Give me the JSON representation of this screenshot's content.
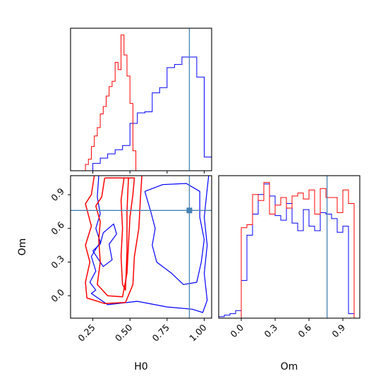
{
  "chart_data": {
    "type": "corner",
    "colors": {
      "series_a": "#0000ff",
      "series_b": "#ff0000",
      "truth": "#4682b4"
    },
    "parameters": [
      "H0",
      "Om"
    ],
    "truth": {
      "H0": 0.9,
      "Om": 0.76
    },
    "grid": false,
    "panels": [
      {
        "id": "hist-H0",
        "type": "histogram",
        "xlim": [
          0.1,
          1.05
        ],
        "ylabel": "",
        "y_ticks_shown": false,
        "series": [
          {
            "color": "#0000ff",
            "bin_edges": [
              0.1,
              0.15,
              0.2,
              0.25,
              0.3,
              0.35,
              0.4,
              0.45,
              0.5,
              0.55,
              0.6,
              0.65,
              0.7,
              0.75,
              0.8,
              0.85,
              0.9,
              0.95,
              1.0,
              1.05
            ],
            "counts": [
              0,
              0,
              0,
              0.7,
              1.2,
              1.6,
              2.0,
              2.4,
              4.5,
              5.5,
              5.6,
              7.4,
              7.9,
              9.8,
              10.1,
              10.8,
              10.8,
              8.9,
              1.3
            ]
          },
          {
            "color": "#ff0000",
            "bin_edges": [
              0.2,
              0.22,
              0.24,
              0.26,
              0.28,
              0.3,
              0.32,
              0.34,
              0.36,
              0.38,
              0.4,
              0.42,
              0.44,
              0.46,
              0.48,
              0.5,
              0.52,
              0.54,
              0.56
            ],
            "counts": [
              0.6,
              1.1,
              2.3,
              3.3,
              4.1,
              5.4,
              6.1,
              7.1,
              8.0,
              8.5,
              10.3,
              9.6,
              12.9,
              11.0,
              9.0,
              6.4,
              1.9,
              0
            ]
          }
        ]
      },
      {
        "id": "contour-H0-Om",
        "type": "contour",
        "xlabel": "H0",
        "ylabel": "Om",
        "xlim": [
          0.1,
          1.05
        ],
        "ylim": [
          -0.2,
          1.07
        ],
        "xticks": [
          "0.25",
          "0.50",
          "0.75",
          "1.00"
        ],
        "yticks": [
          "0.0",
          "0.3",
          "0.6",
          "0.9"
        ],
        "xtick_values": [
          0.25,
          0.5,
          0.75,
          1.0
        ],
        "ytick_values": [
          0.0,
          0.3,
          0.6,
          0.9
        ],
        "series": [
          {
            "color": "#0000ff",
            "levels": [
              [
                [
                  0.29,
                  1.07
                ],
                [
                  0.28,
                  0.88
                ],
                [
                  0.3,
                  0.73
                ],
                [
                  0.27,
                  0.6
                ],
                [
                  0.3,
                  0.48
                ],
                [
                  0.24,
                  0.35
                ],
                [
                  0.27,
                  0.22
                ],
                [
                  0.23,
                  0.12
                ],
                [
                  0.27,
                  0.05
                ],
                [
                  0.24,
                  0.02
                ],
                [
                  0.35,
                  -0.08
                ],
                [
                  0.55,
                  -0.05
                ],
                [
                  0.75,
                  -0.1
                ],
                [
                  0.92,
                  -0.12
                ],
                [
                  0.99,
                  -0.15
                ],
                [
                  1.02,
                  -0.04
                ],
                [
                  1.0,
                  0.2
                ],
                [
                  1.02,
                  0.45
                ],
                [
                  1.0,
                  0.7
                ],
                [
                  1.02,
                  0.95
                ],
                [
                  1.03,
                  1.07
                ]
              ],
              [
                [
                  0.6,
                  0.93
                ],
                [
                  0.72,
                  0.99
                ],
                [
                  0.88,
                  1.0
                ],
                [
                  0.97,
                  0.93
                ],
                [
                  0.97,
                  0.7
                ],
                [
                  1.0,
                  0.5
                ],
                [
                  0.98,
                  0.3
                ],
                [
                  0.95,
                  0.12
                ],
                [
                  0.86,
                  0.1
                ],
                [
                  0.78,
                  0.2
                ],
                [
                  0.68,
                  0.3
                ],
                [
                  0.65,
                  0.45
                ],
                [
                  0.67,
                  0.6
                ],
                [
                  0.64,
                  0.75
                ],
                [
                  0.6,
                  0.93
                ]
              ],
              [
                [
                  0.25,
                  0.4
                ],
                [
                  0.3,
                  0.46
                ],
                [
                  0.32,
                  0.56
                ],
                [
                  0.39,
                  0.64
                ],
                [
                  0.41,
                  0.55
                ],
                [
                  0.36,
                  0.46
                ],
                [
                  0.38,
                  0.32
                ],
                [
                  0.32,
                  0.26
                ],
                [
                  0.25,
                  0.4
                ]
              ]
            ]
          },
          {
            "color": "#ff0000",
            "levels": [
              [
                [
                  0.26,
                  1.07
                ],
                [
                  0.24,
                  0.9
                ],
                [
                  0.2,
                  0.82
                ],
                [
                  0.24,
                  0.62
                ],
                [
                  0.2,
                  0.45
                ],
                [
                  0.23,
                  0.3
                ],
                [
                  0.2,
                  0.12
                ],
                [
                  0.21,
                  -0.02
                ],
                [
                  0.33,
                  -0.07
                ],
                [
                  0.47,
                  -0.06
                ],
                [
                  0.52,
                  0.1
                ],
                [
                  0.53,
                  0.35
                ],
                [
                  0.56,
                  0.6
                ],
                [
                  0.57,
                  0.85
                ],
                [
                  0.58,
                  1.07
                ]
              ],
              [
                [
                  0.33,
                  1.05
                ],
                [
                  0.31,
                  0.88
                ],
                [
                  0.27,
                  0.8
                ],
                [
                  0.3,
                  0.66
                ],
                [
                  0.29,
                  0.5
                ],
                [
                  0.3,
                  0.3
                ],
                [
                  0.28,
                  0.1
                ],
                [
                  0.35,
                  0.0
                ],
                [
                  0.45,
                  -0.01
                ],
                [
                  0.48,
                  0.2
                ],
                [
                  0.49,
                  0.45
                ],
                [
                  0.5,
                  0.7
                ],
                [
                  0.52,
                  0.9
                ],
                [
                  0.53,
                  1.05
                ],
                [
                  0.33,
                  1.05
                ]
              ],
              [
                [
                  0.46,
                  1.05
                ],
                [
                  0.44,
                  0.85
                ],
                [
                  0.45,
                  0.6
                ],
                [
                  0.44,
                  0.35
                ],
                [
                  0.45,
                  0.1
                ],
                [
                  0.47,
                  0.05
                ],
                [
                  0.48,
                  0.4
                ],
                [
                  0.48,
                  0.75
                ],
                [
                  0.49,
                  1.05
                ],
                [
                  0.46,
                  1.05
                ]
              ]
            ]
          }
        ]
      },
      {
        "id": "hist-Om",
        "type": "histogram",
        "xlabel": "Om",
        "xlim": [
          -0.2,
          1.05
        ],
        "xticks": [
          "0.0",
          "0.3",
          "0.6",
          "0.9"
        ],
        "xtick_values": [
          0.0,
          0.3,
          0.6,
          0.9
        ],
        "y_ticks_shown": false,
        "series": [
          {
            "color": "#0000ff",
            "bin_edges": [
              -0.2,
              -0.15,
              -0.1,
              -0.05,
              0.0,
              0.05,
              0.1,
              0.15,
              0.2,
              0.25,
              0.3,
              0.35,
              0.4,
              0.45,
              0.5,
              0.55,
              0.6,
              0.65,
              0.7,
              0.75,
              0.8,
              0.85,
              0.9,
              0.95,
              1.0,
              1.05
            ],
            "counts": [
              0.1,
              0.2,
              0.3,
              0.5,
              2.5,
              5.5,
              6.9,
              8.2,
              8.9,
              8.1,
              6.8,
              6.5,
              7.6,
              6.3,
              5.8,
              7.2,
              6.1,
              5.8,
              7.0,
              6.9,
              6.6,
              5.7,
              6.1,
              0.3,
              0.0
            ]
          },
          {
            "color": "#ff0000",
            "bin_edges": [
              0.0,
              0.05,
              0.1,
              0.15,
              0.2,
              0.25,
              0.3,
              0.35,
              0.4,
              0.45,
              0.5,
              0.55,
              0.6,
              0.65,
              0.7,
              0.75,
              0.8,
              0.85,
              0.9,
              0.95,
              1.0
            ],
            "counts": [
              6.0,
              6.2,
              8.2,
              7.8,
              9.0,
              6.9,
              7.5,
              8.0,
              7.3,
              8.1,
              8.3,
              7.9,
              8.5,
              6.9,
              8.6,
              8.0,
              8.0,
              7.0,
              8.5,
              7.6
            ]
          }
        ]
      }
    ]
  }
}
